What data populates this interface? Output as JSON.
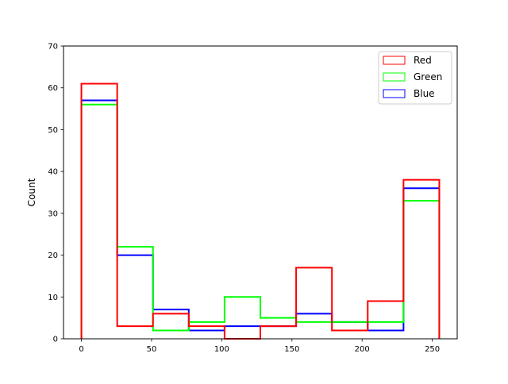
{
  "chart_data": {
    "type": "bar",
    "histtype": "step",
    "title": "",
    "xlabel": "",
    "ylabel": "Count",
    "xlim": [
      -12.75,
      267.75
    ],
    "ylim": [
      0,
      70
    ],
    "bin_edges": [
      0,
      25.5,
      51,
      76.5,
      102,
      127.5,
      153,
      178.5,
      204,
      229.5,
      255
    ],
    "x_ticks": [
      0,
      50,
      100,
      150,
      200,
      250
    ],
    "y_ticks": [
      0,
      10,
      20,
      30,
      40,
      50,
      60,
      70
    ],
    "grid": false,
    "legend_position": "top-right",
    "series": [
      {
        "name": "Red",
        "color": "#ff0000",
        "values": [
          61,
          3,
          6,
          3,
          0,
          3,
          17,
          2,
          9,
          38
        ]
      },
      {
        "name": "Green",
        "color": "#00ff00",
        "values": [
          56,
          22,
          2,
          4,
          10,
          5,
          4,
          4,
          4,
          33
        ]
      },
      {
        "name": "Blue",
        "color": "#0000ff",
        "values": [
          57,
          20,
          7,
          2,
          3,
          3,
          6,
          4,
          2,
          36
        ]
      }
    ]
  }
}
